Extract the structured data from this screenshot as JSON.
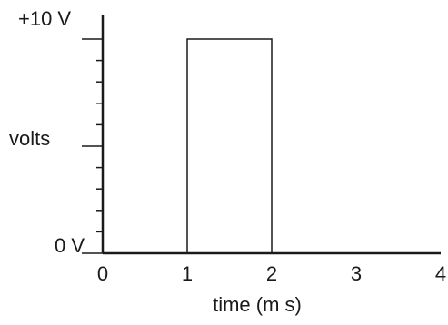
{
  "chart_data": {
    "type": "line",
    "xlabel": "time (m s)",
    "x_ticks": [
      "0",
      "1",
      "2",
      "3",
      "4"
    ],
    "xlim": [
      0,
      4
    ],
    "ylim": [
      0,
      10
    ],
    "y_tick_labels": {
      "top": "+10 V",
      "bottom": "0 V"
    },
    "ylabel": "volts",
    "y_minor_tick_count": 10,
    "series": [
      {
        "x": [
          0,
          1,
          1,
          2,
          2,
          4
        ],
        "y": [
          0,
          0,
          10,
          10,
          0,
          0
        ]
      }
    ],
    "grid": false
  }
}
